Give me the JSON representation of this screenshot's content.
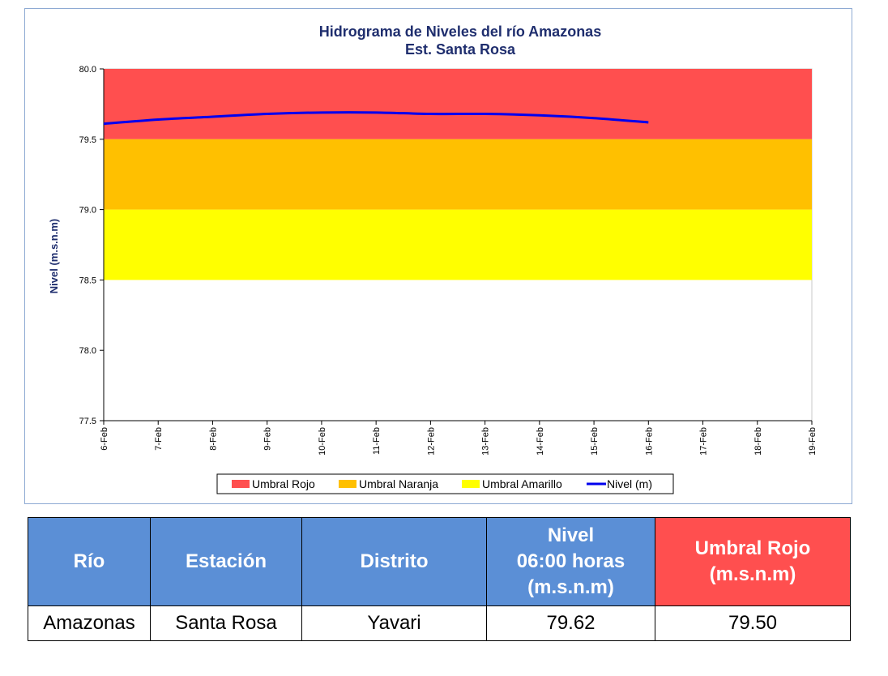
{
  "chart_data": {
    "type": "line",
    "title": "Hidrograma de Niveles del río Amazonas",
    "subtitle": "Est. Santa Rosa",
    "ylabel": "Nivel (m.s.n.m)",
    "ylim": [
      77.5,
      80.0
    ],
    "yticks": [
      "77.5",
      "78.0",
      "78.5",
      "79.0",
      "79.5",
      "80.0"
    ],
    "categories": [
      "6-Feb",
      "7-Feb",
      "8-Feb",
      "9-Feb",
      "10-Feb",
      "11-Feb",
      "12-Feb",
      "13-Feb",
      "14-Feb",
      "15-Feb",
      "16-Feb",
      "17-Feb",
      "18-Feb",
      "19-Feb"
    ],
    "bands": [
      {
        "name": "Umbral Rojo",
        "from": 79.5,
        "to": 80.0,
        "color": "#ff4f4f"
      },
      {
        "name": "Umbral Naranja",
        "from": 79.0,
        "to": 79.5,
        "color": "#ffc000"
      },
      {
        "name": "Umbral Amarillo",
        "from": 78.5,
        "to": 79.0,
        "color": "#ffff00"
      }
    ],
    "series": [
      {
        "name": "Nivel (m)",
        "color": "#0000ee",
        "x": [
          "6-Feb",
          "7-Feb",
          "8-Feb",
          "9-Feb",
          "10-Feb",
          "11-Feb",
          "12-Feb",
          "13-Feb",
          "14-Feb",
          "15-Feb",
          "16-Feb"
        ],
        "values": [
          79.61,
          79.64,
          79.66,
          79.68,
          79.69,
          79.69,
          79.68,
          79.68,
          79.67,
          79.65,
          79.62
        ]
      }
    ],
    "legend": [
      "Umbral Rojo",
      "Umbral Naranja",
      "Umbral Amarillo",
      "Nivel (m)"
    ],
    "legend_position": "bottom",
    "grid": false
  },
  "table": {
    "headers": [
      "Río",
      "Estación",
      "Distrito",
      "Nivel\n06:00 horas\n(m.s.n.m)",
      "Umbral Rojo\n(m.s.n.m)"
    ],
    "row": [
      "Amazonas",
      "Santa Rosa",
      "Yavari",
      "79.62",
      "79.50"
    ],
    "header_color": "#5b8fd6",
    "highlight_color": "#ff4f4f"
  }
}
